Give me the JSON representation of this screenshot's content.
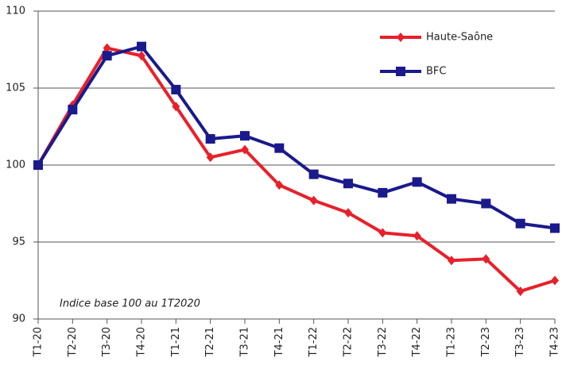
{
  "chart_data": {
    "type": "line",
    "categories": [
      "T1-20",
      "T2-20",
      "T3-20",
      "T4-20",
      "T1-21",
      "T2-21",
      "T3-21",
      "T4-21",
      "T1-22",
      "T2-22",
      "T3-22",
      "T4-22",
      "T1-23",
      "T2-23",
      "T3-23",
      "T4-23"
    ],
    "series": [
      {
        "name": "Haute-Saône",
        "color": "#e8202a",
        "marker": "diamond",
        "values": [
          100,
          103.9,
          107.6,
          107.1,
          103.8,
          100.5,
          101.0,
          98.7,
          97.7,
          96.9,
          95.6,
          95.4,
          93.8,
          93.9,
          91.8,
          92.5
        ]
      },
      {
        "name": "BFC",
        "color": "#1a1a8c",
        "marker": "square",
        "values": [
          100,
          103.6,
          107.1,
          107.7,
          104.9,
          101.7,
          101.9,
          101.1,
          99.4,
          98.8,
          98.2,
          98.9,
          97.8,
          97.5,
          96.2,
          95.9
        ]
      }
    ],
    "annotation": "Indice base 100 au 1T2020",
    "ylim": [
      90,
      110
    ],
    "yticks": [
      90,
      95,
      100,
      105,
      110
    ],
    "grid": true,
    "legend": "upper right"
  }
}
